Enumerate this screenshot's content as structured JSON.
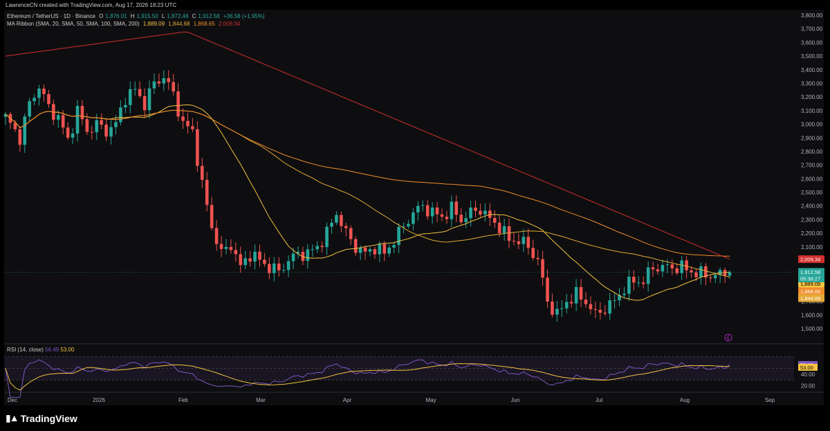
{
  "header": {
    "credit": "LawrenceCN created with TradingView.com, Aug 17, 2026 18:23 UTC"
  },
  "legend": {
    "symbol": "Ethereum / TetherUS · 1D · Binance",
    "o_label": "O",
    "o_value": "1,876.01",
    "h_label": "H",
    "h_value": "1,915.50",
    "l_label": "L",
    "l_value": "1,872.46",
    "c_label": "C",
    "c_value": "1,912.58",
    "change": "+36.58 (+1.95%)",
    "ma_label": "MA Ribbon (SMA, 20, SMA, 50, SMA, 100, SMA, 200)",
    "ma_values": [
      "1,889.09",
      "1,844.68",
      "1,868.65",
      "2,009.34"
    ]
  },
  "rsi_legend": {
    "label": "RSI (14, close)",
    "value1": "56.49",
    "value2": "53.00"
  },
  "branding": {
    "name": "TradingView"
  },
  "colors": {
    "up": "#26a69a",
    "down": "#ef5350",
    "ma20": "#f5c342",
    "ma50": "#e5a935",
    "ma100": "#f08c2b",
    "ma200": "#d32f2f",
    "rsi": "#7e57c2",
    "rsi_ma": "#f5c342"
  },
  "chart_data": [
    {
      "type": "candlestick",
      "title": "Ethereum / TetherUS · 1D · Binance",
      "x_tick_labels": [
        "Dec",
        "2026",
        "Feb",
        "Mar",
        "Apr",
        "May",
        "Jun",
        "Jul",
        "Aug",
        "Sep"
      ],
      "y_tick_labels": [
        "1,500.00",
        "1,600.00",
        "1,700.00",
        "1,800.00",
        "1,900.00",
        "2,000.00",
        "2,100.00",
        "2,200.00",
        "2,300.00",
        "2,400.00",
        "2,500.00",
        "2,600.00",
        "2,700.00",
        "2,800.00",
        "2,900.00",
        "3,000.00",
        "3,100.00",
        "3,200.00",
        "3,300.00",
        "3,400.00",
        "3,500.00",
        "3,600.00",
        "3,700.00",
        "3,800.00"
      ],
      "ylim": [
        1500,
        3800
      ],
      "last_close": 1912.58,
      "countdown": "05:36:27",
      "price_tags": [
        {
          "value": 2009.34,
          "label": "2,009.34",
          "color": "#d32f2f"
        },
        {
          "value": 1912.58,
          "label": "1,912.58",
          "color": "#26a69a"
        },
        {
          "value": 1889.09,
          "label": "1,889.09",
          "color": "#f5c342"
        },
        {
          "value": 1868.65,
          "label": "1,868.65",
          "color": "#f08c2b"
        },
        {
          "value": 1844.68,
          "label": "1,844.68",
          "color": "#e5a935"
        }
      ],
      "price_anchors": [
        [
          0,
          3050
        ],
        [
          3,
          2900
        ],
        [
          5,
          3150
        ],
        [
          7,
          3280
        ],
        [
          9,
          3120
        ],
        [
          11,
          3050
        ],
        [
          13,
          2880
        ],
        [
          15,
          3100
        ],
        [
          17,
          2950
        ],
        [
          19,
          3000
        ],
        [
          21,
          2950
        ],
        [
          23,
          3000
        ],
        [
          25,
          3200
        ],
        [
          27,
          3250
        ],
        [
          29,
          3150
        ],
        [
          31,
          3300
        ],
        [
          33,
          3350
        ],
        [
          35,
          3220
        ],
        [
          37,
          3000
        ],
        [
          39,
          2950
        ],
        [
          41,
          2550
        ],
        [
          43,
          2250
        ],
        [
          45,
          2050
        ],
        [
          47,
          2120
        ],
        [
          49,
          1950
        ],
        [
          51,
          2050
        ],
        [
          53,
          2000
        ],
        [
          55,
          1950
        ],
        [
          57,
          1920
        ],
        [
          59,
          2000
        ],
        [
          61,
          2050
        ],
        [
          63,
          2050
        ],
        [
          65,
          2100
        ],
        [
          67,
          2200
        ],
        [
          69,
          2350
        ],
        [
          71,
          2200
        ],
        [
          73,
          2100
        ],
        [
          75,
          2050
        ],
        [
          77,
          2100
        ],
        [
          79,
          2050
        ],
        [
          81,
          2150
        ],
        [
          83,
          2250
        ],
        [
          85,
          2350
        ],
        [
          87,
          2400
        ],
        [
          89,
          2350
        ],
        [
          91,
          2320
        ],
        [
          93,
          2380
        ],
        [
          95,
          2300
        ],
        [
          97,
          2350
        ],
        [
          99,
          2380
        ],
        [
          101,
          2300
        ],
        [
          103,
          2250
        ],
        [
          105,
          2150
        ],
        [
          107,
          2150
        ],
        [
          109,
          2100
        ],
        [
          111,
          2000
        ],
        [
          113,
          1700
        ],
        [
          115,
          1600
        ],
        [
          117,
          1700
        ],
        [
          119,
          1750
        ],
        [
          121,
          1700
        ],
        [
          123,
          1600
        ],
        [
          125,
          1650
        ],
        [
          127,
          1700
        ],
        [
          129,
          1800
        ],
        [
          131,
          1850
        ],
        [
          133,
          1850
        ],
        [
          135,
          1950
        ],
        [
          137,
          1950
        ],
        [
          139,
          1950
        ],
        [
          141,
          1950
        ],
        [
          143,
          1920
        ],
        [
          145,
          1900
        ],
        [
          147,
          1890
        ],
        [
          149,
          1895
        ],
        [
          151,
          1912
        ]
      ],
      "ohlc_last": {
        "o": 1876.01,
        "h": 1915.5,
        "l": 1872.46,
        "c": 1912.58
      }
    },
    {
      "type": "line",
      "title": "RSI (14, close)",
      "y_tick_labels": [
        "20.00",
        "40.00"
      ],
      "ylim": [
        10,
        85
      ],
      "last_values": {
        "rsi": 56.49,
        "rsi_ma": 53.0
      }
    }
  ]
}
